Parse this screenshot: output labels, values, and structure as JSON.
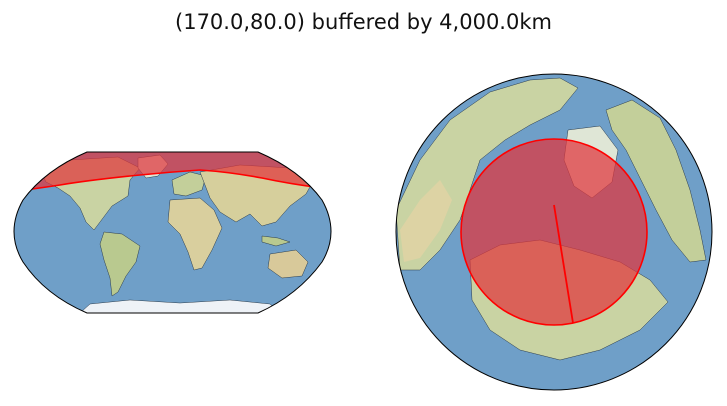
{
  "figure": {
    "title": "(170.0,80.0) buffered by 4,000.0km"
  },
  "buffer": {
    "center_lon": 170.0,
    "center_lat": 80.0,
    "radius_km": 4000.0,
    "fill_color": "#e0353b",
    "edge_color": "#ff0000"
  },
  "maps": [
    {
      "name": "global-map",
      "projection": "robinson"
    },
    {
      "name": "polar-map",
      "projection": "orthographic"
    }
  ],
  "colors": {
    "ocean": "#6f9fc8",
    "land": "#c9d3a3",
    "ice": "#eef2f7",
    "coast": "#2b3b4a",
    "border": "#000000"
  }
}
